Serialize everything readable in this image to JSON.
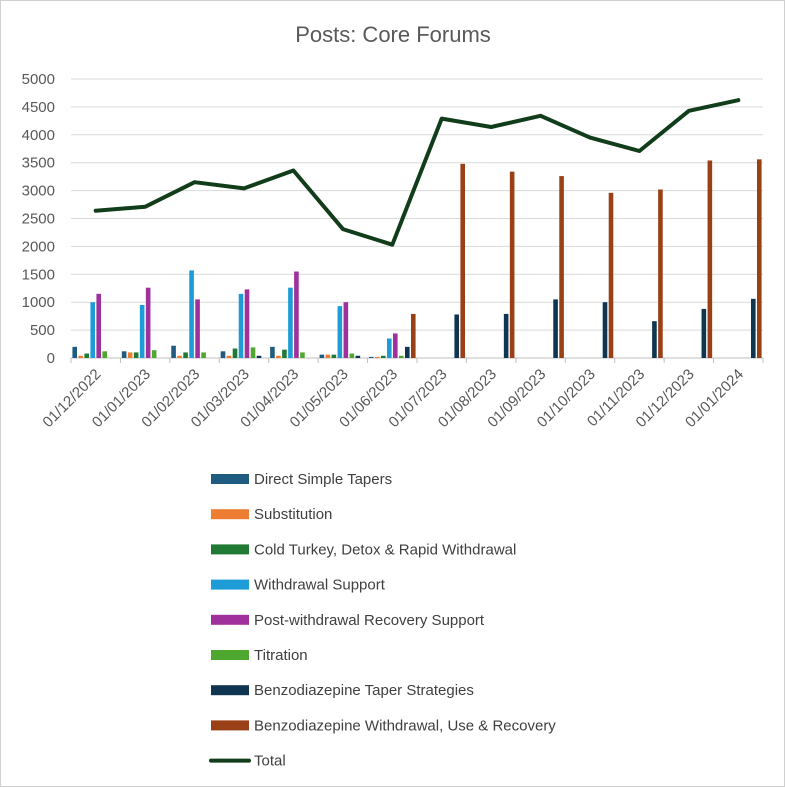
{
  "chart_data": {
    "type": "bar",
    "title": "Posts: Core Forums",
    "xlabel": "",
    "ylabel": "",
    "ylim": [
      0,
      5000
    ],
    "yticks": [
      0,
      500,
      1000,
      1500,
      2000,
      2500,
      3000,
      3500,
      4000,
      4500,
      5000
    ],
    "grid": true,
    "legend_position": "bottom",
    "categories": [
      "01/12/2022",
      "01/01/2023",
      "01/02/2023",
      "01/03/2023",
      "01/04/2023",
      "01/05/2023",
      "01/06/2023",
      "01/07/2023",
      "01/08/2023",
      "01/09/2023",
      "01/10/2023",
      "01/11/2023",
      "01/12/2023",
      "01/01/2024"
    ],
    "series": [
      {
        "name": "Direct Simple Tapers",
        "kind": "bar",
        "color": "#1f5c7f",
        "values": [
          200,
          120,
          220,
          120,
          200,
          60,
          20,
          0,
          0,
          0,
          0,
          0,
          0,
          0
        ]
      },
      {
        "name": "Substitution",
        "kind": "bar",
        "color": "#ed7d31",
        "values": [
          40,
          100,
          40,
          40,
          40,
          60,
          20,
          0,
          0,
          0,
          0,
          0,
          0,
          0
        ]
      },
      {
        "name": "Cold Turkey, Detox & Rapid Withdrawal",
        "kind": "bar",
        "color": "#217a34",
        "values": [
          80,
          100,
          100,
          170,
          150,
          60,
          40,
          0,
          0,
          0,
          0,
          0,
          0,
          0
        ]
      },
      {
        "name": "Withdrawal Support",
        "kind": "bar",
        "color": "#1e9cd7",
        "values": [
          1000,
          950,
          1570,
          1150,
          1260,
          930,
          350,
          0,
          0,
          0,
          0,
          0,
          0,
          0
        ]
      },
      {
        "name": "Post-withdrawal Recovery Support",
        "kind": "bar",
        "color": "#a0309b",
        "values": [
          1150,
          1260,
          1050,
          1230,
          1550,
          1000,
          440,
          0,
          0,
          0,
          0,
          0,
          0,
          0
        ]
      },
      {
        "name": "Titration",
        "kind": "bar",
        "color": "#4ea72e",
        "values": [
          120,
          140,
          100,
          190,
          100,
          80,
          40,
          0,
          0,
          0,
          0,
          0,
          0,
          0
        ]
      },
      {
        "name": "Benzodiazepine Taper Strategies",
        "kind": "bar",
        "color": "#0f3550",
        "values": [
          0,
          0,
          0,
          40,
          0,
          40,
          200,
          780,
          790,
          1050,
          1000,
          660,
          880,
          1060
        ]
      },
      {
        "name": "Benzodiazepine Withdrawal, Use & Recovery",
        "kind": "bar",
        "color": "#9a4016",
        "values": [
          0,
          0,
          0,
          0,
          0,
          0,
          790,
          3480,
          3340,
          3260,
          2960,
          3020,
          3540,
          3560
        ]
      },
      {
        "name": "Total",
        "kind": "line",
        "color": "#123d1b",
        "values": [
          2640,
          2710,
          3150,
          3040,
          3360,
          2310,
          2030,
          4290,
          4140,
          4340,
          3950,
          3710,
          4430,
          4620
        ]
      }
    ]
  }
}
